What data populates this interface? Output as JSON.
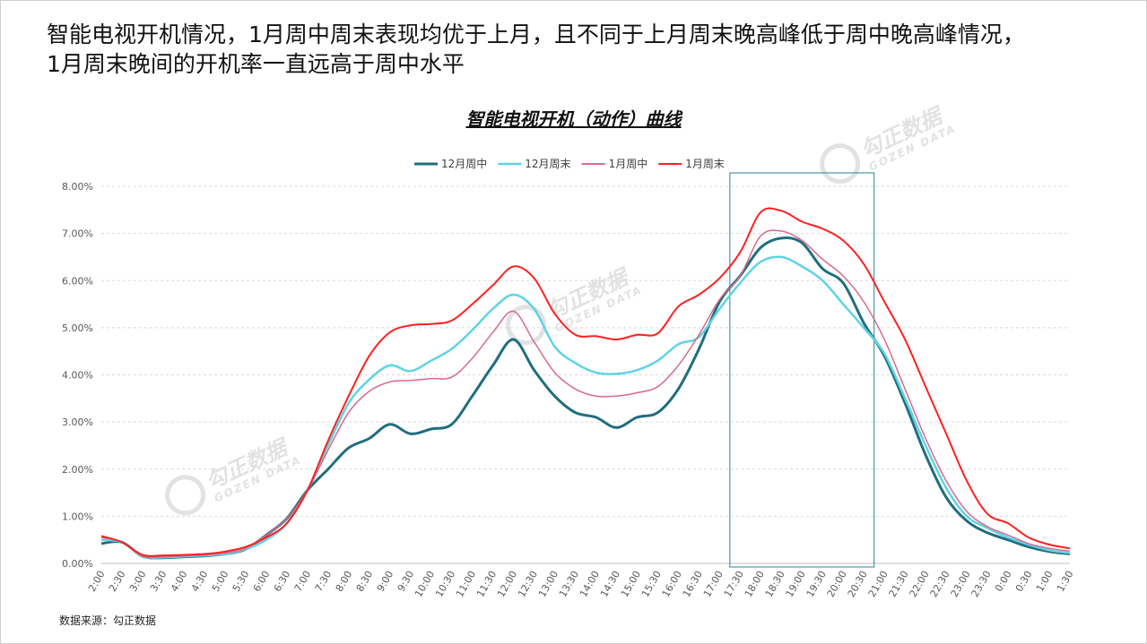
{
  "headline": {
    "line1": "智能电视开机情况，1月周中周末表现均优于上月，且不同于上月周末晚高峰低于周中晚高峰情况，",
    "line2": "1月周末晚间的开机率一直远高于周中水平"
  },
  "source": "数据来源：勾正数据",
  "watermark": {
    "cn": "勾正数据",
    "en": "GOZEN DATA"
  },
  "chart_data": {
    "type": "line",
    "title": "智能电视开机（动作）曲线",
    "xlabel": "",
    "ylabel": "",
    "ylim": [
      0,
      8
    ],
    "y_unit": "%",
    "y_ticks": [
      "0.00%",
      "1.00%",
      "2.00%",
      "3.00%",
      "4.00%",
      "5.00%",
      "6.00%",
      "7.00%",
      "8.00%"
    ],
    "grid": true,
    "legend_position": "top",
    "highlight_range": [
      "17:30",
      "20:30"
    ],
    "x": [
      "2:00",
      "2:30",
      "3:00",
      "3:30",
      "4:00",
      "4:30",
      "5:00",
      "5:30",
      "6:00",
      "6:30",
      "7:00",
      "7:30",
      "8:00",
      "8:30",
      "9:00",
      "9:30",
      "10:00",
      "10:30",
      "11:00",
      "11:30",
      "12:00",
      "12:30",
      "13:00",
      "13:30",
      "14:00",
      "14:30",
      "15:00",
      "15:30",
      "16:00",
      "16:30",
      "17:00",
      "17:30",
      "18:00",
      "18:30",
      "19:00",
      "19:30",
      "20:00",
      "20:30",
      "21:00",
      "21:30",
      "22:00",
      "22:30",
      "23:00",
      "23:30",
      "0:00",
      "0:30",
      "1:00",
      "1:30"
    ],
    "series": [
      {
        "name": "12月周中",
        "color": "#1f6e7e",
        "width": 3,
        "values": [
          0.42,
          0.45,
          0.15,
          0.12,
          0.14,
          0.16,
          0.2,
          0.3,
          0.6,
          0.95,
          1.55,
          2.0,
          2.45,
          2.65,
          2.95,
          2.75,
          2.85,
          2.95,
          3.55,
          4.2,
          4.75,
          4.1,
          3.55,
          3.2,
          3.1,
          2.88,
          3.1,
          3.2,
          3.7,
          4.55,
          5.55,
          6.1,
          6.7,
          6.9,
          6.8,
          6.25,
          5.95,
          5.1,
          4.4,
          3.4,
          2.3,
          1.4,
          0.9,
          0.65,
          0.5,
          0.35,
          0.25,
          0.2
        ]
      },
      {
        "name": "12月周末",
        "color": "#5fd3e6",
        "width": 2.5,
        "values": [
          0.5,
          0.45,
          0.15,
          0.13,
          0.15,
          0.17,
          0.2,
          0.3,
          0.5,
          0.85,
          1.55,
          2.5,
          3.4,
          3.9,
          4.2,
          4.08,
          4.3,
          4.55,
          4.95,
          5.4,
          5.7,
          5.4,
          4.6,
          4.25,
          4.05,
          4.02,
          4.1,
          4.3,
          4.65,
          4.8,
          5.4,
          5.95,
          6.4,
          6.5,
          6.3,
          6.0,
          5.5,
          5.0,
          4.45,
          3.5,
          2.5,
          1.6,
          1.0,
          0.75,
          0.55,
          0.4,
          0.28,
          0.22
        ]
      },
      {
        "name": "1月周中",
        "color": "#d76b8a",
        "width": 1.5,
        "values": [
          0.55,
          0.45,
          0.15,
          0.14,
          0.16,
          0.18,
          0.22,
          0.32,
          0.6,
          0.95,
          1.55,
          2.4,
          3.2,
          3.65,
          3.85,
          3.88,
          3.92,
          3.95,
          4.35,
          4.9,
          5.35,
          4.7,
          4.05,
          3.7,
          3.55,
          3.55,
          3.62,
          3.75,
          4.2,
          4.85,
          5.6,
          6.1,
          6.95,
          7.05,
          6.85,
          6.45,
          6.1,
          5.55,
          4.75,
          3.7,
          2.65,
          1.75,
          1.1,
          0.78,
          0.6,
          0.42,
          0.32,
          0.26
        ]
      },
      {
        "name": "1月周末",
        "color": "#ff2020",
        "width": 2,
        "values": [
          0.58,
          0.45,
          0.18,
          0.17,
          0.18,
          0.2,
          0.25,
          0.35,
          0.55,
          0.85,
          1.55,
          2.6,
          3.55,
          4.4,
          4.9,
          5.05,
          5.08,
          5.15,
          5.5,
          5.9,
          6.3,
          6.05,
          5.3,
          4.85,
          4.82,
          4.75,
          4.85,
          4.88,
          5.45,
          5.7,
          6.05,
          6.6,
          7.45,
          7.48,
          7.25,
          7.1,
          6.85,
          6.35,
          5.55,
          4.75,
          3.75,
          2.75,
          1.75,
          1.05,
          0.85,
          0.55,
          0.4,
          0.32
        ]
      }
    ]
  }
}
